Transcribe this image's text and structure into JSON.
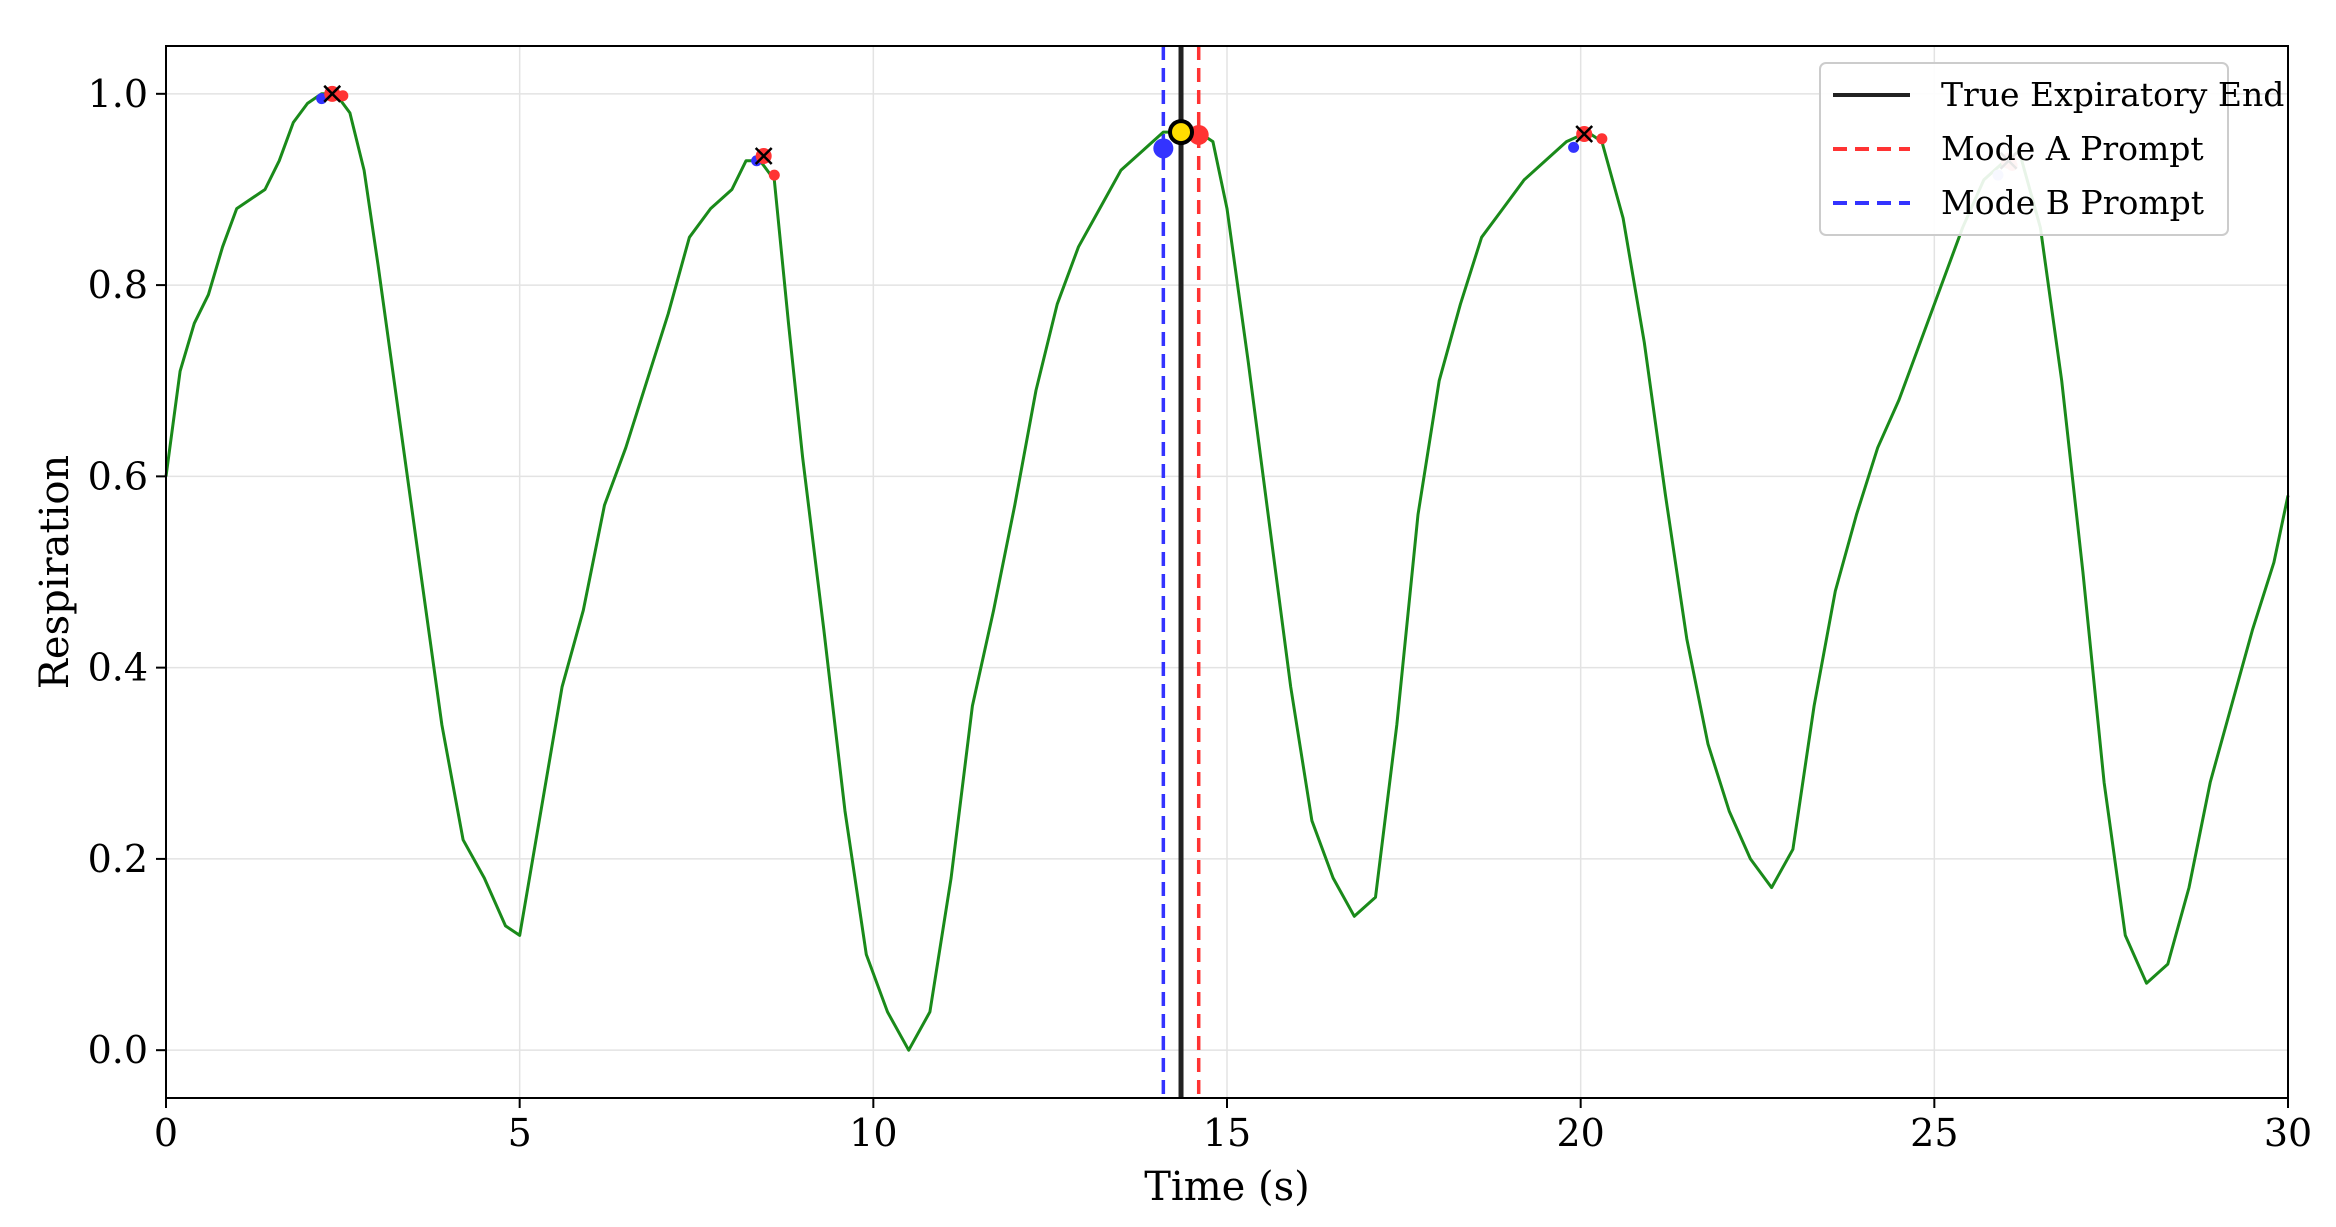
{
  "chart_data": {
    "type": "line",
    "title": "",
    "xlabel": "Time (s)",
    "ylabel": "Respiration",
    "xlim": [
      0,
      30
    ],
    "ylim": [
      -0.05,
      1.05
    ],
    "xticks": [
      0,
      5,
      10,
      15,
      20,
      25,
      30
    ],
    "xtick_labels": [
      "0",
      "5",
      "10",
      "15",
      "20",
      "25",
      "30"
    ],
    "yticks": [
      0.0,
      0.2,
      0.4,
      0.6,
      0.8,
      1.0
    ],
    "ytick_labels": [
      "0.0",
      "0.2",
      "0.4",
      "0.6",
      "0.8",
      "1.0"
    ],
    "grid": true,
    "legend_position": "top-right",
    "colors": {
      "signal": "#1a8a1a",
      "true_end": "#222222",
      "mode_a": "#ff3333",
      "mode_b": "#3333ff",
      "highlight": "#ffdd00"
    },
    "series": [
      {
        "label": "respiration signal",
        "x": [
          0,
          0.2,
          0.4,
          0.6,
          0.8,
          1.0,
          1.2,
          1.4,
          1.6,
          1.8,
          2.0,
          2.2,
          2.4,
          2.6,
          2.8,
          3.0,
          3.3,
          3.6,
          3.9,
          4.2,
          4.5,
          4.8,
          5.0,
          5.3,
          5.6,
          5.9,
          6.2,
          6.5,
          6.8,
          7.1,
          7.4,
          7.7,
          8.0,
          8.2,
          8.4,
          8.6,
          8.8,
          9.0,
          9.3,
          9.6,
          9.9,
          10.2,
          10.5,
          10.8,
          11.1,
          11.4,
          11.7,
          12.0,
          12.3,
          12.6,
          12.9,
          13.2,
          13.5,
          13.8,
          14.1,
          14.4,
          14.6,
          14.8,
          15.0,
          15.3,
          15.6,
          15.9,
          16.2,
          16.5,
          16.8,
          17.1,
          17.4,
          17.7,
          18.0,
          18.3,
          18.6,
          18.9,
          19.2,
          19.5,
          19.8,
          20.1,
          20.3,
          20.6,
          20.9,
          21.2,
          21.5,
          21.8,
          22.1,
          22.4,
          22.7,
          23.0,
          23.3,
          23.6,
          23.9,
          24.2,
          24.5,
          24.8,
          25.1,
          25.4,
          25.7,
          26.0,
          26.2,
          26.5,
          26.8,
          27.1,
          27.4,
          27.7,
          28.0,
          28.3,
          28.6,
          28.9,
          29.2,
          29.5,
          29.8,
          30.0
        ],
        "values": [
          0.6,
          0.71,
          0.76,
          0.79,
          0.84,
          0.88,
          0.89,
          0.9,
          0.93,
          0.97,
          0.99,
          1.0,
          1.0,
          0.98,
          0.92,
          0.82,
          0.66,
          0.5,
          0.34,
          0.22,
          0.18,
          0.13,
          0.12,
          0.25,
          0.38,
          0.46,
          0.57,
          0.63,
          0.7,
          0.77,
          0.85,
          0.88,
          0.9,
          0.93,
          0.93,
          0.91,
          0.76,
          0.62,
          0.44,
          0.25,
          0.1,
          0.04,
          0.0,
          0.04,
          0.18,
          0.36,
          0.46,
          0.57,
          0.69,
          0.78,
          0.84,
          0.88,
          0.92,
          0.94,
          0.96,
          0.96,
          0.96,
          0.95,
          0.88,
          0.72,
          0.55,
          0.38,
          0.24,
          0.18,
          0.14,
          0.16,
          0.34,
          0.56,
          0.7,
          0.78,
          0.85,
          0.88,
          0.91,
          0.93,
          0.95,
          0.96,
          0.95,
          0.87,
          0.74,
          0.58,
          0.43,
          0.32,
          0.25,
          0.2,
          0.17,
          0.21,
          0.36,
          0.48,
          0.56,
          0.63,
          0.68,
          0.74,
          0.8,
          0.86,
          0.91,
          0.93,
          0.94,
          0.86,
          0.7,
          0.5,
          0.28,
          0.12,
          0.07,
          0.09,
          0.17,
          0.28,
          0.36,
          0.44,
          0.51,
          0.58
        ]
      }
    ],
    "vertical_lines": [
      {
        "name": "True Expiratory End",
        "x": 14.35,
        "style": "solid"
      },
      {
        "name": "Mode A Prompt",
        "x": 14.6,
        "style": "dashed"
      },
      {
        "name": "Mode B Prompt",
        "x": 14.1,
        "style": "dashed"
      }
    ],
    "markers": [
      {
        "x": 2.2,
        "y": 0.995,
        "color": "blue",
        "size": "small"
      },
      {
        "x": 2.5,
        "y": 0.998,
        "color": "red",
        "size": "small"
      },
      {
        "x": 2.35,
        "y": 1.0,
        "color": "red",
        "size": "cross"
      },
      {
        "x": 8.35,
        "y": 0.93,
        "color": "blue",
        "size": "small"
      },
      {
        "x": 8.6,
        "y": 0.915,
        "color": "red",
        "size": "small"
      },
      {
        "x": 8.45,
        "y": 0.935,
        "color": "red",
        "size": "cross"
      },
      {
        "x": 14.1,
        "y": 0.943,
        "color": "blue",
        "size": "large"
      },
      {
        "x": 14.6,
        "y": 0.957,
        "color": "red",
        "size": "large"
      },
      {
        "x": 14.35,
        "y": 0.96,
        "color": "yellow",
        "size": "large"
      },
      {
        "x": 19.9,
        "y": 0.944,
        "color": "blue",
        "size": "small"
      },
      {
        "x": 20.3,
        "y": 0.953,
        "color": "red",
        "size": "small"
      },
      {
        "x": 20.05,
        "y": 0.958,
        "color": "red",
        "size": "cross"
      },
      {
        "x": 25.9,
        "y": 0.915,
        "color": "lightblue",
        "size": "small"
      },
      {
        "x": 26.1,
        "y": 0.925,
        "color": "lightred",
        "size": "small"
      },
      {
        "x": 26.05,
        "y": 0.93,
        "color": "lightred",
        "size": "cross"
      }
    ],
    "legend": [
      {
        "label": "True Expiratory End",
        "style": "solid",
        "color": "#222222"
      },
      {
        "label": "Mode A Prompt",
        "style": "dashed",
        "color": "#ff3333"
      },
      {
        "label": "Mode B Prompt",
        "style": "dashed",
        "color": "#3333ff"
      }
    ]
  }
}
